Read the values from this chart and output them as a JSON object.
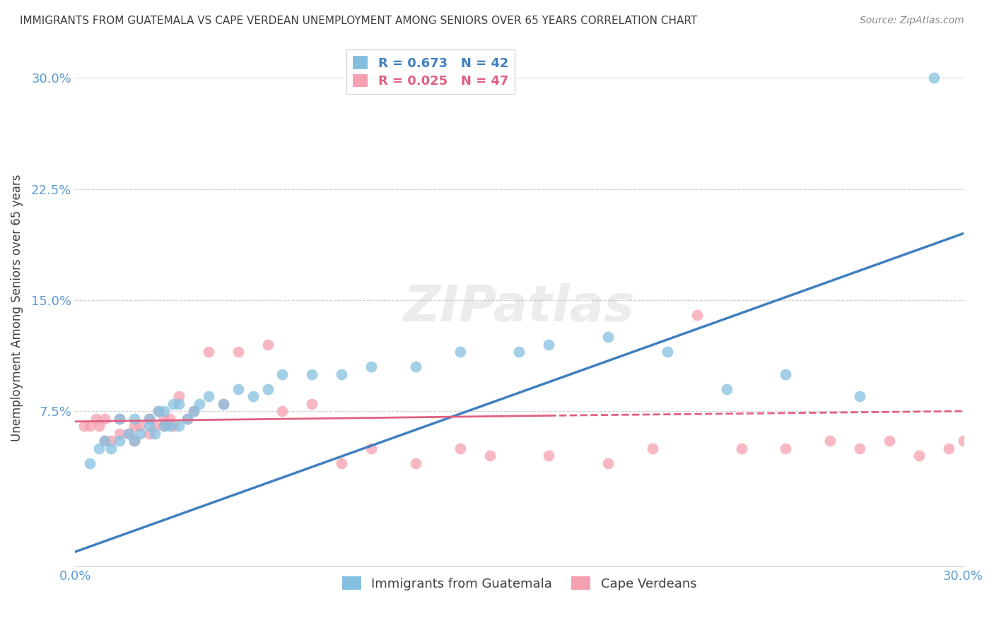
{
  "title": "IMMIGRANTS FROM GUATEMALA VS CAPE VERDEAN UNEMPLOYMENT AMONG SENIORS OVER 65 YEARS CORRELATION CHART",
  "source": "Source: ZipAtlas.com",
  "ylabel": "Unemployment Among Seniors over 65 years",
  "xlim": [
    0.0,
    0.3
  ],
  "ylim": [
    -0.03,
    0.32
  ],
  "yticks": [
    0.075,
    0.15,
    0.225,
    0.3
  ],
  "ytick_labels": [
    "7.5%",
    "15.0%",
    "22.5%",
    "30.0%"
  ],
  "xticks": [
    0.0,
    0.05,
    0.1,
    0.15,
    0.2,
    0.25,
    0.3
  ],
  "xtick_labels": [
    "0.0%",
    "",
    "",
    "",
    "",
    "",
    "30.0%"
  ],
  "blue_R": 0.673,
  "blue_N": 42,
  "pink_R": 0.025,
  "pink_N": 47,
  "blue_color": "#85bfdf",
  "pink_color": "#f5a0b0",
  "trend_blue_color": "#4080c0",
  "trend_pink_color": "#e06080",
  "legend_label_blue": "Immigrants from Guatemala",
  "legend_label_pink": "Cape Verdeans",
  "blue_scatter_x": [
    0.005,
    0.008,
    0.01,
    0.012,
    0.015,
    0.015,
    0.018,
    0.02,
    0.02,
    0.022,
    0.025,
    0.025,
    0.027,
    0.028,
    0.03,
    0.03,
    0.032,
    0.033,
    0.035,
    0.035,
    0.038,
    0.04,
    0.042,
    0.045,
    0.05,
    0.055,
    0.06,
    0.065,
    0.07,
    0.08,
    0.09,
    0.1,
    0.115,
    0.13,
    0.15,
    0.16,
    0.18,
    0.2,
    0.22,
    0.24,
    0.265,
    0.29
  ],
  "blue_scatter_y": [
    0.04,
    0.05,
    0.055,
    0.05,
    0.055,
    0.07,
    0.06,
    0.055,
    0.07,
    0.06,
    0.065,
    0.07,
    0.06,
    0.075,
    0.065,
    0.075,
    0.065,
    0.08,
    0.065,
    0.08,
    0.07,
    0.075,
    0.08,
    0.085,
    0.08,
    0.09,
    0.085,
    0.09,
    0.1,
    0.1,
    0.1,
    0.105,
    0.105,
    0.115,
    0.115,
    0.12,
    0.125,
    0.115,
    0.09,
    0.1,
    0.085,
    0.3
  ],
  "pink_scatter_x": [
    0.003,
    0.005,
    0.007,
    0.008,
    0.01,
    0.01,
    0.012,
    0.015,
    0.015,
    0.018,
    0.02,
    0.02,
    0.022,
    0.025,
    0.025,
    0.027,
    0.028,
    0.03,
    0.03,
    0.032,
    0.033,
    0.035,
    0.038,
    0.04,
    0.045,
    0.05,
    0.055,
    0.065,
    0.07,
    0.08,
    0.09,
    0.1,
    0.115,
    0.13,
    0.14,
    0.16,
    0.18,
    0.195,
    0.21,
    0.225,
    0.24,
    0.255,
    0.265,
    0.275,
    0.285,
    0.295,
    0.3
  ],
  "pink_scatter_y": [
    0.065,
    0.065,
    0.07,
    0.065,
    0.055,
    0.07,
    0.055,
    0.06,
    0.07,
    0.06,
    0.055,
    0.065,
    0.065,
    0.06,
    0.07,
    0.065,
    0.075,
    0.065,
    0.07,
    0.07,
    0.065,
    0.085,
    0.07,
    0.075,
    0.115,
    0.08,
    0.115,
    0.12,
    0.075,
    0.08,
    0.04,
    0.05,
    0.04,
    0.05,
    0.045,
    0.045,
    0.04,
    0.05,
    0.14,
    0.05,
    0.05,
    0.055,
    0.05,
    0.055,
    0.045,
    0.05,
    0.055
  ],
  "blue_trend_x0": 0.0,
  "blue_trend_y0": -0.02,
  "blue_trend_x1": 0.3,
  "blue_trend_y1": 0.195,
  "pink_trend_solid_x0": 0.0,
  "pink_trend_solid_y0": 0.068,
  "pink_trend_solid_x1": 0.16,
  "pink_trend_solid_y1": 0.072,
  "pink_trend_dash_x0": 0.16,
  "pink_trend_dash_y0": 0.072,
  "pink_trend_dash_x1": 0.3,
  "pink_trend_dash_y1": 0.075,
  "background_color": "#ffffff",
  "grid_color": "#d0d0d0",
  "tick_color": "#5b9bd5",
  "title_color": "#404040",
  "axis_label_color": "#404040"
}
